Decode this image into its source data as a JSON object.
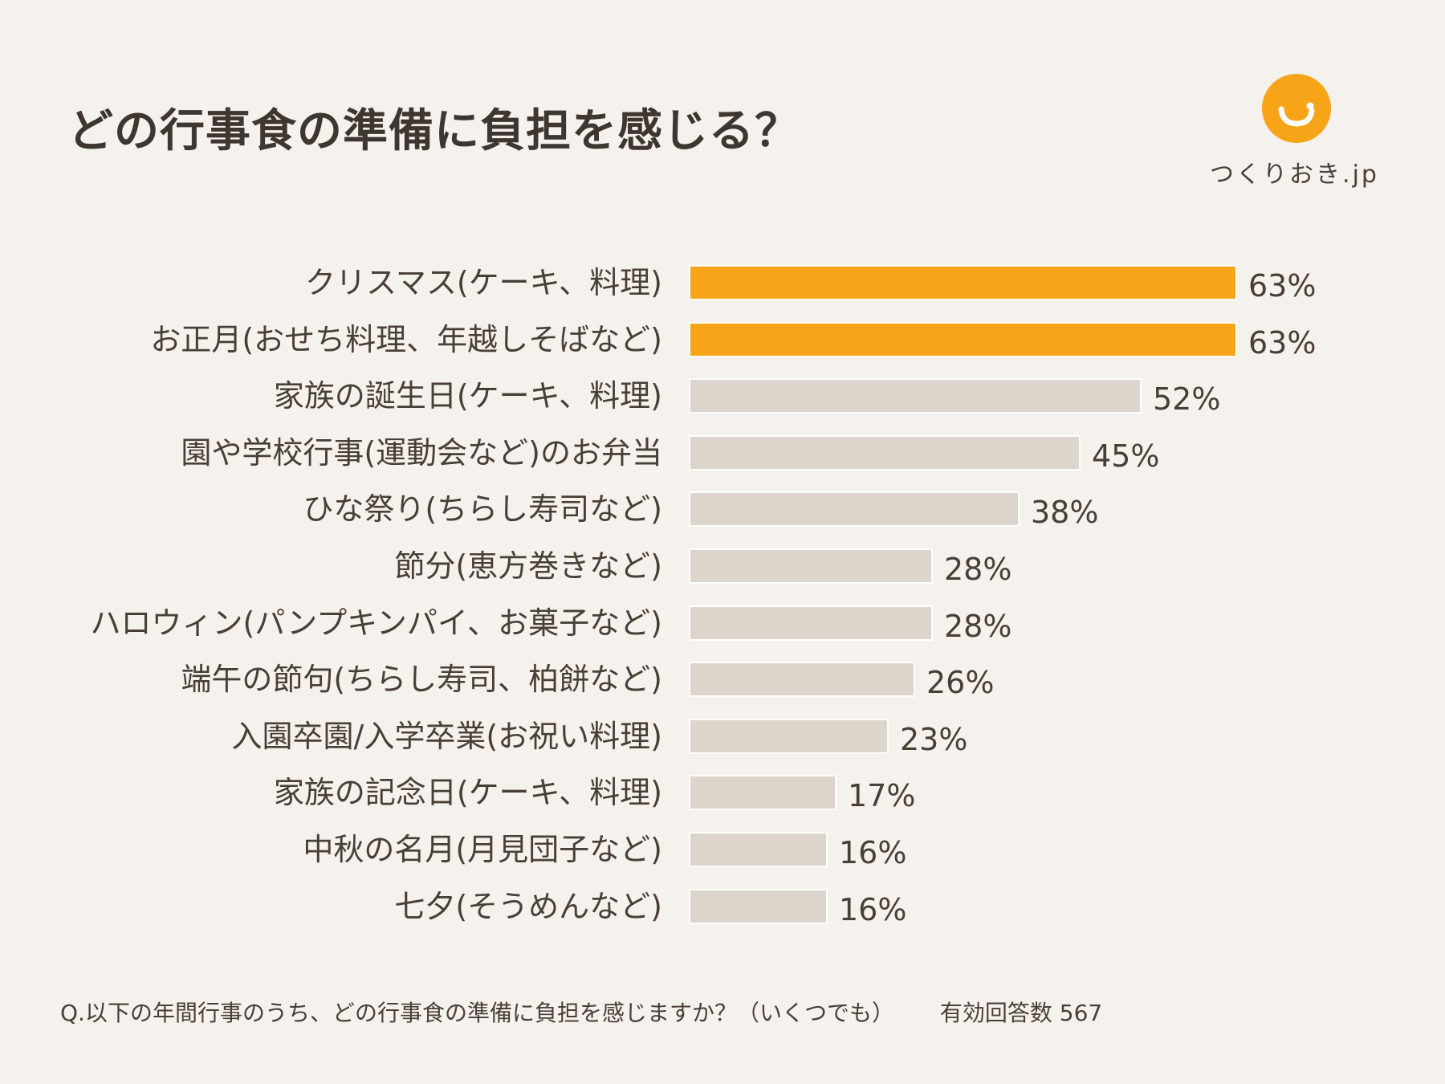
{
  "header": {
    "title": "どの行事食の準備に負担を感じる？"
  },
  "logo": {
    "text": "つくりおき.jp",
    "color": "#f7a418"
  },
  "chart_data": {
    "type": "bar",
    "orientation": "horizontal",
    "unit": "%",
    "xlim": [
      0,
      63
    ],
    "highlight_color": "#f7a418",
    "default_color": "#ddd5cb",
    "categories": [
      "クリスマス(ケーキ、料理)",
      "お正月(おせち料理、年越しそばなど)",
      "家族の誕生日(ケーキ、料理)",
      "園や学校行事(運動会など)のお弁当",
      "ひな祭り(ちらし寿司など)",
      "節分(恵方巻きなど)",
      "ハロウィン(パンプキンパイ、お菓子など)",
      "端午の節句(ちらし寿司、柏餅など)",
      "入園卒園/入学卒業(お祝い料理)",
      "家族の記念日(ケーキ、料理)",
      "中秋の名月(月見団子など)",
      "七夕(そうめんなど)"
    ],
    "values": [
      63,
      63,
      52,
      45,
      38,
      28,
      28,
      26,
      23,
      17,
      16,
      16
    ],
    "value_labels": [
      "63%",
      "63%",
      "52%",
      "45%",
      "38%",
      "28%",
      "28%",
      "26%",
      "23%",
      "17%",
      "16%",
      "16%"
    ],
    "highlighted": [
      true,
      true,
      false,
      false,
      false,
      false,
      false,
      false,
      false,
      false,
      false,
      false
    ]
  },
  "footer": {
    "question": "Q.以下の年間行事のうち、どの行事食の準備に負担を感じますか？（いくつでも）",
    "respondents": "有効回答数 567"
  }
}
